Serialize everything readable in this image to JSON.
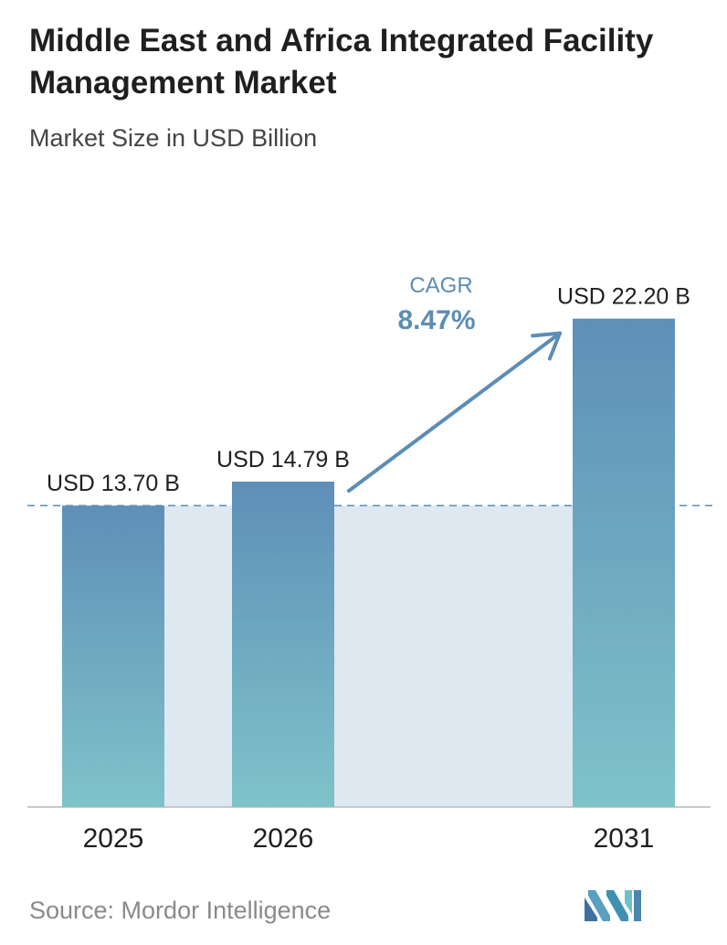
{
  "header": {
    "title": "Middle East and Africa Integrated Facility Management Market",
    "subtitle": "Market Size in USD Billion"
  },
  "chart_data": {
    "type": "bar",
    "title": "Middle East and Africa Integrated Facility Management Market",
    "subtitle": "Market Size in USD Billion",
    "categories": [
      "2025",
      "2026",
      "2031"
    ],
    "values": [
      13.7,
      14.79,
      22.2
    ],
    "value_labels": [
      "USD 13.70 B",
      "USD 14.79 B",
      "USD 22.20 B"
    ],
    "unit": "USD Billion",
    "cagr": {
      "label": "CAGR",
      "value": "8.47%"
    },
    "grid": false,
    "baseline_reference_value": 13.7
  },
  "footer": {
    "source": "Source: Mordor Intelligence",
    "logo_icon": "mordor-intelligence-logo-icon"
  },
  "colors": {
    "bar_top": "#5f8fb8",
    "bar_bottom": "#7ec3c9",
    "band_fill": "#dde8f1",
    "arrow": "#5b8db5",
    "cagr_text": "#5b8db5",
    "axis": "#c8c8c8"
  }
}
